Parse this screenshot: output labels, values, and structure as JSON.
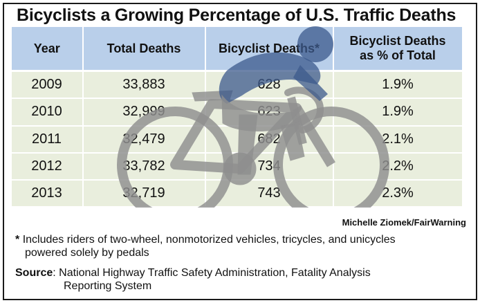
{
  "title": "Bicyclists a Growing Percentage of U.S. Traffic Deaths",
  "chart_data": {
    "type": "table",
    "title": "Bicyclists a Growing Percentage of U.S. Traffic Deaths",
    "columns": [
      "Year",
      "Total Deaths",
      "Bicyclist Deaths*",
      "Bicyclist Deaths as % of Total"
    ],
    "header_lines": [
      [
        "Year"
      ],
      [
        "Total Deaths"
      ],
      [
        "Bicyclist Deaths*"
      ],
      [
        "Bicyclist Deaths",
        "as % of Total"
      ]
    ],
    "rows": [
      [
        "2009",
        "33,883",
        "628",
        "1.9%"
      ],
      [
        "2010",
        "32,999",
        "623",
        "1.9%"
      ],
      [
        "2011",
        "32,479",
        "682",
        "2.1%"
      ],
      [
        "2012",
        "33,782",
        "734",
        "2.2%"
      ],
      [
        "2013",
        "32,719",
        "743",
        "2.3%"
      ]
    ]
  },
  "credit": "Michelle Ziomek/FairWarning",
  "footnote": {
    "marker": "*",
    "line1": "Includes riders of two-wheel, nonmotorized vehicles, tricycles, and unicycles",
    "line2": "powered solely by pedals"
  },
  "source": {
    "label": "Source",
    "line1": ": National Highway Traffic Safety Administration, Fatality Analysis",
    "line2": "Reporting System"
  },
  "colors": {
    "header_bg": "#b9cfea",
    "row_bg": "#e9eedd",
    "cyclist_rider": "#3c5a8c",
    "cyclist_bike": "#8f8f8f"
  },
  "icons": {
    "watermark": "cyclist-icon"
  }
}
